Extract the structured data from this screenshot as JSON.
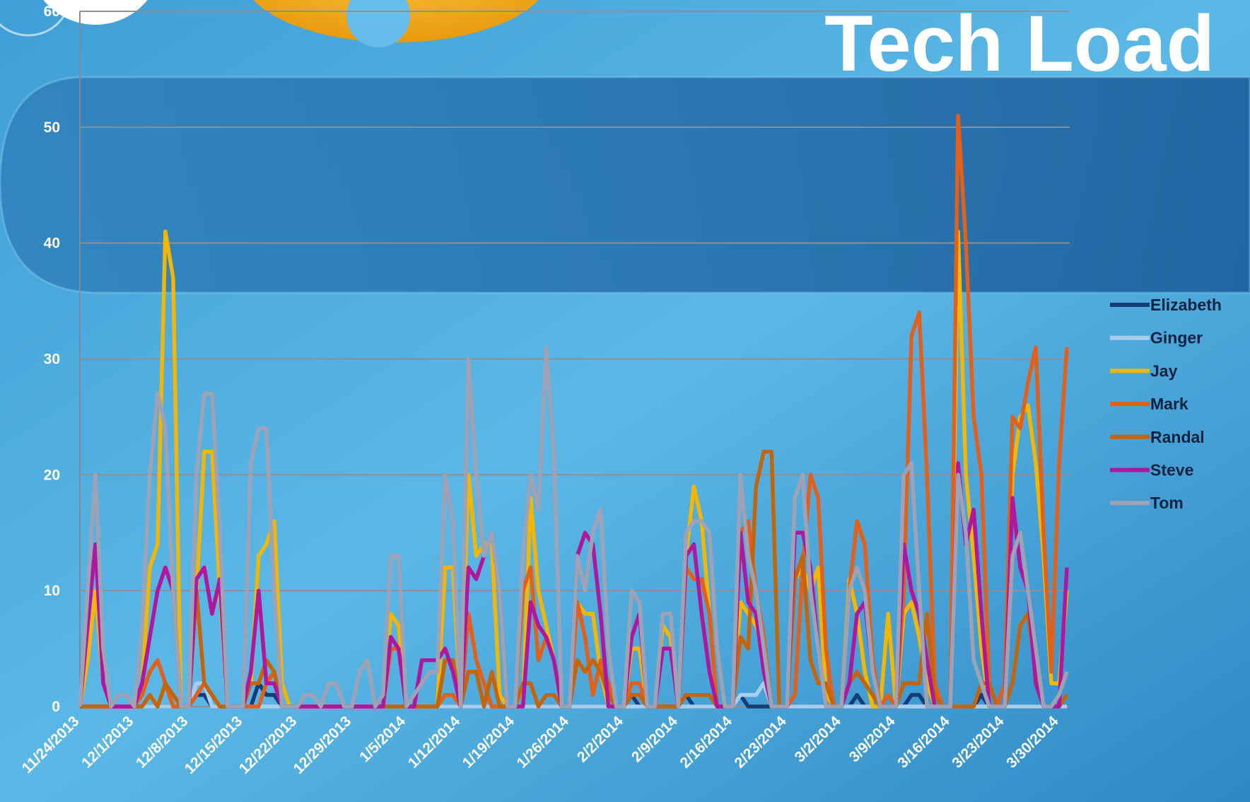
{
  "chart_data": {
    "type": "line",
    "title": "Tech Load",
    "categories": [
      "11/24/2013",
      null,
      null,
      null,
      null,
      null,
      null,
      "12/1/2013",
      null,
      null,
      null,
      null,
      null,
      null,
      "12/8/2013",
      null,
      null,
      null,
      null,
      null,
      null,
      "12/15/2013",
      null,
      null,
      null,
      null,
      null,
      null,
      "12/22/2013",
      null,
      null,
      null,
      null,
      null,
      null,
      "12/29/2013",
      null,
      null,
      null,
      null,
      null,
      null,
      "1/5/2014",
      null,
      null,
      null,
      null,
      null,
      null,
      "1/12/2014",
      null,
      null,
      null,
      null,
      null,
      null,
      "1/19/2014",
      null,
      null,
      null,
      null,
      null,
      null,
      "1/26/2014",
      null,
      null,
      null,
      null,
      null,
      null,
      "2/2/2014",
      null,
      null,
      null,
      null,
      null,
      null,
      "2/9/2014",
      null,
      null,
      null,
      null,
      null,
      null,
      "2/16/2014",
      null,
      null,
      null,
      null,
      null,
      null,
      "2/23/2014",
      null,
      null,
      null,
      null,
      null,
      null,
      "3/2/2014",
      null,
      null,
      null,
      null,
      null,
      null,
      "3/9/2014",
      null,
      null,
      null,
      null,
      null,
      null,
      "3/16/2014",
      null,
      null,
      null,
      null,
      null,
      null,
      "3/23/2014",
      null,
      null,
      null,
      null,
      null,
      null,
      "3/30/2014",
      null
    ],
    "series": [
      {
        "name": "Elizabeth",
        "color": "#163d78",
        "values": [
          0,
          0,
          0,
          0,
          0,
          0,
          0,
          0,
          0,
          0,
          0,
          0,
          0,
          0,
          0,
          1,
          1,
          0,
          0,
          0,
          0,
          0,
          0,
          2,
          1,
          1,
          0,
          0,
          0,
          0,
          0,
          0,
          0,
          0,
          0,
          0,
          0,
          0,
          0,
          0,
          0,
          0,
          0,
          0,
          0,
          0,
          0,
          0,
          0,
          0,
          0,
          0,
          0,
          0,
          0,
          0,
          0,
          0,
          0,
          0,
          0,
          0,
          0,
          0,
          0,
          0,
          0,
          0,
          0,
          0,
          0,
          1,
          0,
          0,
          0,
          0,
          0,
          0,
          1,
          0,
          0,
          0,
          0,
          0,
          0,
          1,
          0,
          0,
          0,
          0,
          0,
          0,
          0,
          0,
          0,
          0,
          0,
          0,
          0,
          0,
          1,
          0,
          0,
          0,
          0,
          0,
          0,
          1,
          1,
          0,
          0,
          0,
          0,
          0,
          0,
          0,
          1,
          0,
          0,
          0,
          0,
          0,
          0,
          0,
          0,
          0,
          0,
          0
        ]
      },
      {
        "name": "Ginger",
        "color": "#a9cdec",
        "values": [
          0,
          0,
          0,
          0,
          0,
          0,
          0,
          0,
          0,
          0,
          0,
          0,
          0,
          0,
          0,
          2,
          2,
          0,
          0,
          0,
          0,
          0,
          0,
          0,
          0,
          0,
          0,
          0,
          0,
          0,
          0,
          0,
          0,
          0,
          0,
          0,
          0,
          0,
          0,
          0,
          0,
          0,
          0,
          0,
          0,
          0,
          0,
          0,
          0,
          0,
          0,
          0,
          0,
          0,
          0,
          0,
          0,
          0,
          0,
          0,
          0,
          0,
          0,
          0,
          0,
          0,
          0,
          0,
          0,
          0,
          0,
          0,
          0,
          0,
          0,
          0,
          0,
          0,
          0,
          0,
          0,
          0,
          0,
          0,
          0,
          1,
          1,
          1,
          2,
          0,
          0,
          0,
          0,
          0,
          0,
          0,
          0,
          0,
          0,
          0,
          0,
          0,
          0,
          0,
          0,
          0,
          0,
          0,
          0,
          0,
          0,
          0,
          0,
          0,
          0,
          0,
          0,
          0,
          0,
          0,
          0,
          0,
          0,
          0,
          0,
          0,
          0,
          0
        ]
      },
      {
        "name": "Jay",
        "color": "#f2b705",
        "values": [
          0,
          4,
          10,
          2,
          0,
          0,
          0,
          0,
          2,
          12,
          14,
          41,
          37,
          0,
          0,
          10,
          22,
          22,
          10,
          0,
          0,
          0,
          2,
          13,
          14,
          16,
          2,
          0,
          0,
          0,
          0,
          0,
          0,
          0,
          0,
          0,
          0,
          0,
          0,
          0,
          8,
          7,
          0,
          0,
          0,
          0,
          0,
          12,
          12,
          0,
          20,
          13,
          14,
          14,
          1,
          0,
          0,
          0,
          18,
          10,
          7,
          4,
          0,
          0,
          9,
          8,
          8,
          3,
          0,
          0,
          0,
          5,
          5,
          0,
          0,
          7,
          6,
          0,
          13,
          19,
          16,
          8,
          0,
          0,
          0,
          9,
          8,
          7,
          5,
          0,
          0,
          0,
          11,
          12,
          10,
          12,
          1,
          0,
          0,
          11,
          8,
          3,
          0,
          0,
          8,
          0,
          8,
          9,
          6,
          2,
          0,
          0,
          0,
          41,
          20,
          13,
          5,
          0,
          0,
          0,
          20,
          25,
          26,
          21,
          13,
          2,
          2,
          10
        ]
      },
      {
        "name": "Mark",
        "color": "#e2601a",
        "values": [
          0,
          0,
          0,
          0,
          0,
          0,
          0,
          0,
          1,
          3,
          4,
          2,
          0,
          0,
          0,
          1,
          2,
          1,
          0,
          0,
          0,
          0,
          0,
          0,
          2,
          3,
          0,
          0,
          0,
          0,
          0,
          0,
          0,
          0,
          0,
          0,
          0,
          0,
          0,
          0,
          5,
          5,
          0,
          0,
          0,
          0,
          0,
          1,
          1,
          0,
          8,
          4,
          2,
          0,
          0,
          0,
          0,
          10,
          12,
          4,
          6,
          4,
          0,
          0,
          9,
          6,
          1,
          4,
          2,
          0,
          0,
          2,
          2,
          0,
          0,
          0,
          0,
          0,
          12,
          11,
          11,
          8,
          0,
          0,
          0,
          15,
          16,
          10,
          6,
          0,
          0,
          0,
          1,
          12,
          20,
          18,
          5,
          0,
          0,
          10,
          16,
          14,
          4,
          0,
          1,
          0,
          10,
          32,
          34,
          20,
          2,
          0,
          0,
          51,
          40,
          25,
          20,
          2,
          0,
          2,
          25,
          24,
          28,
          31,
          15,
          3,
          21,
          31
        ]
      },
      {
        "name": "Randal",
        "color": "#c4650c",
        "values": [
          0,
          0,
          0,
          0,
          0,
          0,
          0,
          0,
          0,
          1,
          0,
          2,
          1,
          0,
          0,
          10,
          2,
          1,
          0,
          0,
          0,
          0,
          2,
          2,
          4,
          3,
          0,
          0,
          0,
          0,
          0,
          0,
          0,
          0,
          0,
          0,
          0,
          0,
          0,
          0,
          0,
          0,
          0,
          0,
          0,
          0,
          0,
          4,
          4,
          0,
          3,
          3,
          0,
          3,
          0,
          0,
          0,
          2,
          2,
          0,
          1,
          1,
          0,
          0,
          4,
          3,
          4,
          3,
          1,
          0,
          0,
          1,
          1,
          0,
          0,
          0,
          0,
          0,
          1,
          1,
          1,
          1,
          0,
          0,
          0,
          6,
          5,
          19,
          22,
          22,
          0,
          0,
          11,
          13,
          4,
          2,
          2,
          0,
          0,
          2,
          3,
          2,
          1,
          0,
          0,
          0,
          2,
          2,
          2,
          8,
          1,
          0,
          0,
          0,
          0,
          0,
          2,
          2,
          0,
          0,
          2,
          7,
          8,
          3,
          0,
          0,
          0,
          1
        ]
      },
      {
        "name": "Steve",
        "color": "#b0169e",
        "values": [
          0,
          7,
          14,
          2,
          0,
          0,
          0,
          0,
          2,
          6,
          10,
          12,
          10,
          0,
          0,
          11,
          12,
          8,
          11,
          0,
          0,
          0,
          3,
          10,
          2,
          2,
          0,
          0,
          0,
          0,
          0,
          0,
          0,
          0,
          0,
          0,
          0,
          0,
          0,
          0,
          6,
          5,
          0,
          0,
          4,
          4,
          4,
          5,
          3,
          0,
          12,
          11,
          13,
          15,
          10,
          0,
          0,
          0,
          9,
          7,
          6,
          4,
          0,
          0,
          13,
          15,
          14,
          8,
          0,
          0,
          0,
          6,
          8,
          0,
          0,
          5,
          5,
          0,
          13,
          14,
          8,
          3,
          0,
          0,
          0,
          15,
          9,
          8,
          3,
          0,
          0,
          0,
          15,
          15,
          12,
          5,
          0,
          0,
          0,
          2,
          8,
          9,
          3,
          0,
          0,
          0,
          14,
          10,
          8,
          4,
          0,
          0,
          0,
          21,
          14,
          17,
          8,
          0,
          0,
          0,
          18,
          12,
          10,
          2,
          0,
          0,
          0,
          12
        ]
      },
      {
        "name": "Tom",
        "color": "#9ea2b6",
        "values": [
          0,
          10,
          20,
          5,
          0,
          1,
          1,
          0,
          7,
          20,
          27,
          24,
          10,
          0,
          0,
          20,
          27,
          27,
          15,
          0,
          0,
          0,
          21,
          24,
          24,
          10,
          0,
          0,
          0,
          1,
          1,
          0,
          2,
          2,
          0,
          0,
          3,
          4,
          0,
          1,
          13,
          13,
          0,
          1,
          2,
          3,
          3,
          20,
          16,
          0,
          30,
          20,
          13,
          15,
          10,
          0,
          0,
          13,
          20,
          17,
          31,
          22,
          0,
          0,
          13,
          10,
          15,
          17,
          5,
          0,
          0,
          10,
          9,
          0,
          0,
          8,
          8,
          0,
          15,
          16,
          16,
          15,
          5,
          0,
          0,
          20,
          13,
          10,
          5,
          0,
          0,
          0,
          18,
          20,
          10,
          5,
          0,
          0,
          0,
          10,
          12,
          10,
          3,
          0,
          0,
          0,
          20,
          21,
          10,
          0,
          0,
          0,
          0,
          20,
          15,
          4,
          2,
          0,
          0,
          0,
          13,
          15,
          10,
          5,
          0,
          0,
          1,
          3
        ]
      }
    ],
    "ylim": [
      0,
      60
    ],
    "yticks": [
      0,
      10,
      20,
      30,
      40,
      50,
      60
    ],
    "grid": true,
    "legend": "right"
  }
}
